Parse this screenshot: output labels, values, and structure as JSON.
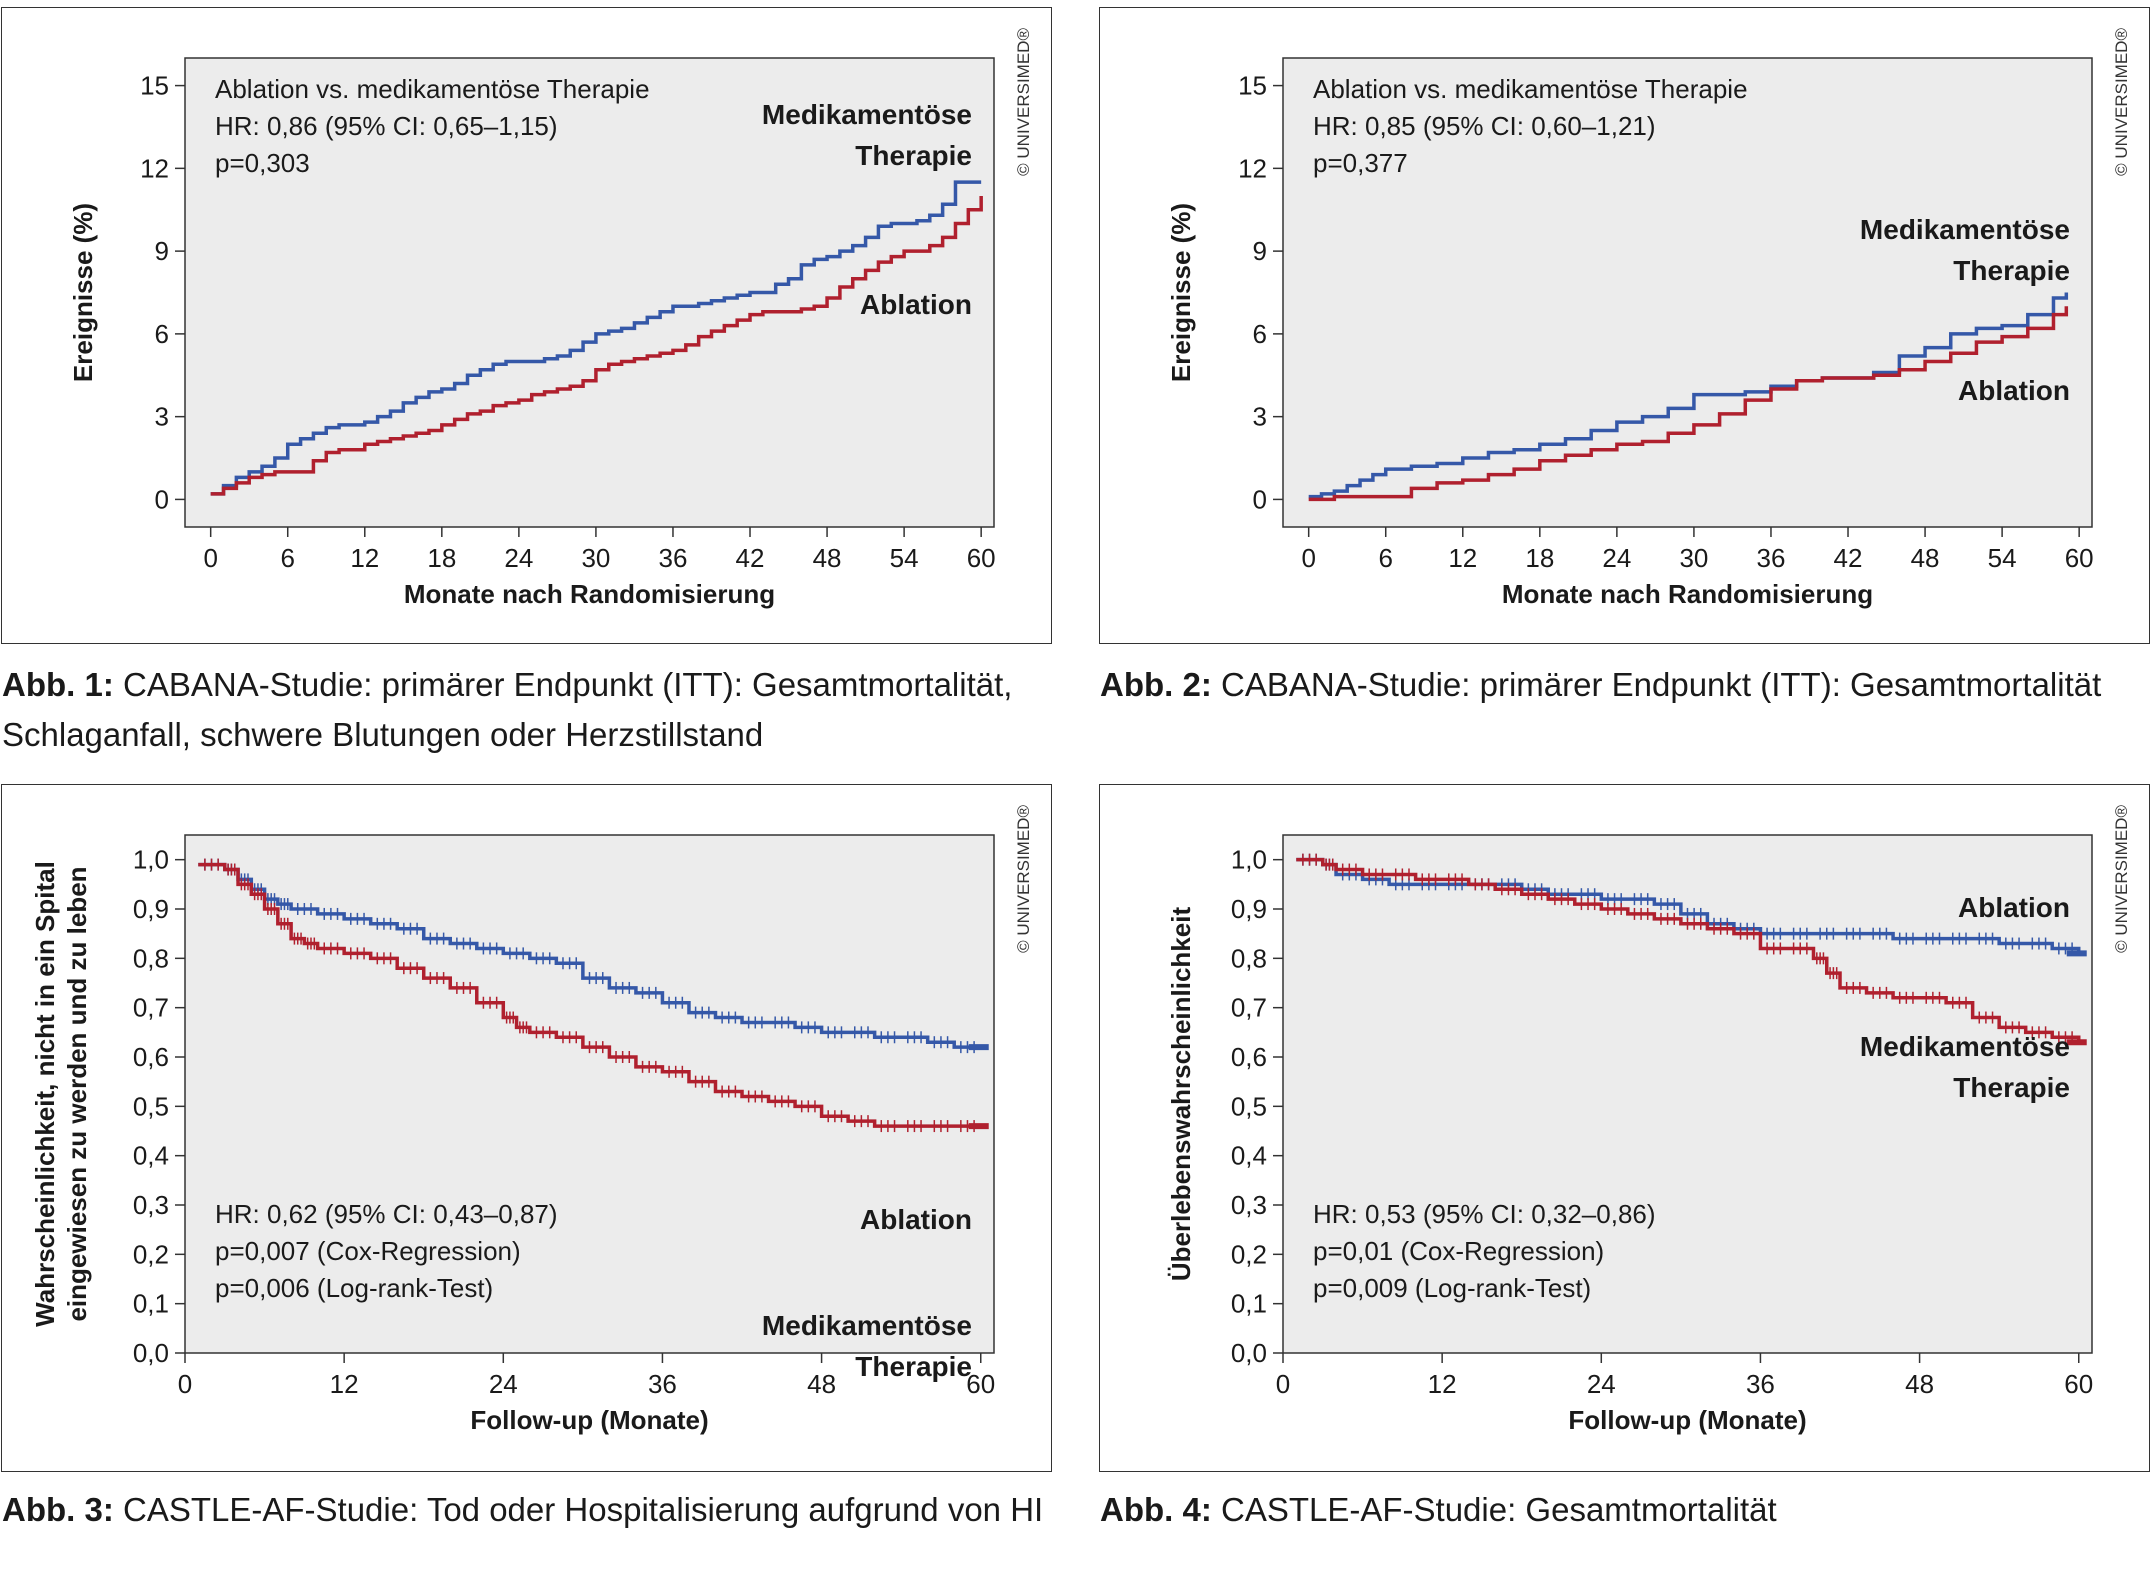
{
  "copyright": "© UNIVERSIMED®",
  "colors": {
    "blue": "#3558a8",
    "red": "#b0202e",
    "plot_bg": "#ececec"
  },
  "figures": [
    {
      "caption_label": "Abb. 1:",
      "caption_text": "CABANA-Studie: primärer Endpunkt (ITT): Gesamtmortalität, Schlaganfall, schwere Blutungen oder Herzstillstand",
      "stats": [
        "Ablation vs. medikamentöse Therapie",
        "HR: 0,86 (95% CI: 0,65–1,15)",
        "p=0,303"
      ],
      "labels": {
        "blue": [
          "Medikamentöse",
          "Therapie"
        ],
        "red": [
          "Ablation"
        ]
      }
    },
    {
      "caption_label": "Abb. 2:",
      "caption_text": "CABANA-Studie: primärer Endpunkt (ITT): Gesamtmortalität",
      "stats": [
        "Ablation vs. medikamentöse Therapie",
        "HR: 0,85 (95% CI: 0,60–1,21)",
        "p=0,377"
      ],
      "labels": {
        "blue": [
          "Medikamentöse",
          "Therapie"
        ],
        "red": [
          "Ablation"
        ]
      }
    },
    {
      "caption_label": "Abb. 3:",
      "caption_text": "CASTLE-AF-Studie: Tod oder Hospitalisierung aufgrund von HI",
      "stats": [
        "HR: 0,62 (95% CI: 0,43–0,87)",
        "p=0,007 (Cox-Regression)",
        "p=0,006 (Log-rank-Test)"
      ],
      "labels": {
        "blue": [
          "Ablation"
        ],
        "red": [
          "Medikamentöse",
          "Therapie"
        ]
      }
    },
    {
      "caption_label": "Abb. 4:",
      "caption_text": "CASTLE-AF-Studie: Gesamtmortalität",
      "stats": [
        "HR: 0,53 (95% CI: 0,32–0,86)",
        "p=0,01 (Cox-Regression)",
        "p=0,009 (Log-rank-Test)"
      ],
      "labels": {
        "blue": [
          "Ablation"
        ],
        "red": [
          "Medikamentöse",
          "Therapie"
        ]
      }
    }
  ],
  "chart_data": [
    {
      "type": "line",
      "step": true,
      "xlabel": "Monate nach Randomisierung",
      "ylabel": "Ereignisse (%)",
      "xlim": [
        -2,
        61
      ],
      "ylim": [
        -1,
        16
      ],
      "xticks": [
        0,
        6,
        12,
        18,
        24,
        30,
        36,
        42,
        48,
        54,
        60
      ],
      "yticks": [
        0,
        3,
        6,
        9,
        12,
        15
      ],
      "xticklabels": [
        "0",
        "6",
        "12",
        "18",
        "24",
        "30",
        "36",
        "42",
        "48",
        "54",
        "60"
      ],
      "yticklabels": [
        "0",
        "3",
        "6",
        "9",
        "12",
        "15"
      ],
      "series": [
        {
          "name": "Medikamentöse Therapie",
          "color": "#3558a8",
          "x": [
            0,
            1,
            2,
            3,
            4,
            5,
            6,
            7,
            8,
            9,
            10,
            12,
            13,
            14,
            15,
            16,
            17,
            18,
            19,
            20,
            21,
            22,
            23,
            24,
            25,
            26,
            27,
            28,
            29,
            30,
            31,
            32,
            33,
            34,
            35,
            36,
            37,
            38,
            39,
            40,
            41,
            42,
            43,
            44,
            45,
            46,
            47,
            48,
            49,
            50,
            51,
            52,
            53,
            54,
            55,
            56,
            57,
            58,
            59,
            60
          ],
          "y": [
            0.2,
            0.5,
            0.8,
            1.0,
            1.2,
            1.5,
            2.0,
            2.2,
            2.4,
            2.6,
            2.7,
            2.8,
            3.0,
            3.2,
            3.5,
            3.7,
            3.9,
            4.0,
            4.2,
            4.5,
            4.7,
            4.9,
            5.0,
            5.0,
            5.0,
            5.1,
            5.2,
            5.4,
            5.7,
            6.0,
            6.1,
            6.2,
            6.4,
            6.6,
            6.8,
            7.0,
            7.0,
            7.1,
            7.2,
            7.3,
            7.4,
            7.5,
            7.5,
            7.8,
            8.0,
            8.5,
            8.7,
            8.8,
            9.0,
            9.2,
            9.5,
            9.9,
            10.0,
            10.0,
            10.1,
            10.3,
            10.7,
            11.5,
            11.5,
            11.5
          ]
        },
        {
          "name": "Ablation",
          "color": "#b0202e",
          "x": [
            0,
            1,
            2,
            3,
            4,
            5,
            6,
            7,
            8,
            9,
            10,
            12,
            13,
            14,
            15,
            16,
            17,
            18,
            19,
            20,
            21,
            22,
            23,
            24,
            25,
            26,
            27,
            28,
            29,
            30,
            31,
            32,
            33,
            34,
            35,
            36,
            37,
            38,
            39,
            40,
            41,
            42,
            43,
            44,
            45,
            46,
            47,
            48,
            49,
            50,
            51,
            52,
            53,
            54,
            55,
            56,
            57,
            58,
            59,
            60
          ],
          "y": [
            0.2,
            0.4,
            0.6,
            0.8,
            0.9,
            1.0,
            1.0,
            1.0,
            1.4,
            1.7,
            1.8,
            2.0,
            2.1,
            2.2,
            2.3,
            2.4,
            2.5,
            2.7,
            2.9,
            3.1,
            3.2,
            3.4,
            3.5,
            3.6,
            3.8,
            3.9,
            4.0,
            4.1,
            4.3,
            4.7,
            4.9,
            5.0,
            5.1,
            5.2,
            5.3,
            5.4,
            5.6,
            5.9,
            6.1,
            6.3,
            6.5,
            6.7,
            6.8,
            6.8,
            6.8,
            6.9,
            7.0,
            7.3,
            7.7,
            8.0,
            8.3,
            8.6,
            8.8,
            9.0,
            9.0,
            9.2,
            9.5,
            10.0,
            10.5,
            11.0
          ]
        }
      ]
    },
    {
      "type": "line",
      "step": true,
      "xlabel": "Monate nach Randomisierung",
      "ylabel": "Ereignisse (%)",
      "xlim": [
        -2,
        61
      ],
      "ylim": [
        -1,
        16
      ],
      "xticks": [
        0,
        6,
        12,
        18,
        24,
        30,
        36,
        42,
        48,
        54,
        60
      ],
      "yticks": [
        0,
        3,
        6,
        9,
        12,
        15
      ],
      "xticklabels": [
        "0",
        "6",
        "12",
        "18",
        "24",
        "30",
        "36",
        "42",
        "48",
        "54",
        "60"
      ],
      "yticklabels": [
        "0",
        "3",
        "6",
        "9",
        "12",
        "15"
      ],
      "series": [
        {
          "name": "Medikamentöse Therapie",
          "color": "#3558a8",
          "x": [
            0,
            1,
            2,
            3,
            4,
            5,
            6,
            8,
            10,
            12,
            14,
            16,
            18,
            20,
            22,
            24,
            26,
            28,
            30,
            32,
            34,
            36,
            38,
            40,
            42,
            44,
            46,
            48,
            50,
            52,
            54,
            56,
            58,
            59
          ],
          "y": [
            0.1,
            0.2,
            0.3,
            0.5,
            0.7,
            0.9,
            1.1,
            1.2,
            1.3,
            1.5,
            1.7,
            1.8,
            2.0,
            2.2,
            2.5,
            2.8,
            3.0,
            3.3,
            3.8,
            3.8,
            3.9,
            4.1,
            4.3,
            4.4,
            4.4,
            4.6,
            5.2,
            5.5,
            6.0,
            6.2,
            6.3,
            6.7,
            7.3,
            7.5
          ]
        },
        {
          "name": "Ablation",
          "color": "#b0202e",
          "x": [
            0,
            2,
            4,
            6,
            8,
            10,
            12,
            14,
            16,
            18,
            20,
            22,
            24,
            26,
            28,
            30,
            32,
            34,
            36,
            38,
            40,
            42,
            44,
            46,
            48,
            50,
            52,
            54,
            56,
            58,
            59
          ],
          "y": [
            0,
            0.1,
            0.1,
            0.1,
            0.4,
            0.6,
            0.7,
            0.9,
            1.1,
            1.4,
            1.6,
            1.8,
            2.0,
            2.1,
            2.4,
            2.7,
            3.1,
            3.6,
            4.0,
            4.3,
            4.4,
            4.4,
            4.5,
            4.7,
            5.0,
            5.3,
            5.7,
            5.9,
            6.2,
            6.7,
            7.0
          ]
        }
      ]
    },
    {
      "type": "line",
      "step": true,
      "xlabel": "Follow-up (Monate)",
      "ylabel": "Wahrscheinlichkeit, nicht in ein Spital eingewiesen zu werden und zu leben",
      "xlim": [
        0,
        61
      ],
      "ylim": [
        0,
        1.05
      ],
      "xticks": [
        0,
        12,
        24,
        36,
        48,
        60
      ],
      "yticks": [
        0,
        0.1,
        0.2,
        0.3,
        0.4,
        0.5,
        0.6,
        0.7,
        0.8,
        0.9,
        1.0
      ],
      "xticklabels": [
        "0",
        "12",
        "24",
        "36",
        "48",
        "60"
      ],
      "yticklabels": [
        "0,0",
        "0,1",
        "0,2",
        "0,3",
        "0,4",
        "0,5",
        "0,6",
        "0,7",
        "0,8",
        "0,9",
        "1,0"
      ],
      "series": [
        {
          "name": "Ablation",
          "color": "#3558a8",
          "x": [
            1,
            3,
            4,
            5,
            6,
            7,
            8,
            10,
            12,
            14,
            16,
            18,
            20,
            22,
            24,
            26,
            28,
            30,
            32,
            34,
            36,
            38,
            40,
            42,
            44,
            46,
            48,
            50,
            52,
            54,
            56,
            58,
            60
          ],
          "y": [
            0.99,
            0.98,
            0.96,
            0.94,
            0.92,
            0.91,
            0.9,
            0.89,
            0.88,
            0.87,
            0.86,
            0.84,
            0.83,
            0.82,
            0.81,
            0.8,
            0.79,
            0.76,
            0.74,
            0.73,
            0.71,
            0.69,
            0.68,
            0.67,
            0.67,
            0.66,
            0.65,
            0.65,
            0.64,
            0.64,
            0.63,
            0.62,
            0.62
          ]
        },
        {
          "name": "Medikamentöse Therapie",
          "color": "#b0202e",
          "x": [
            1,
            3,
            4,
            5,
            6,
            7,
            8,
            9,
            10,
            12,
            14,
            16,
            18,
            20,
            22,
            24,
            25,
            26,
            28,
            30,
            32,
            34,
            36,
            38,
            40,
            42,
            44,
            46,
            48,
            50,
            52,
            54,
            56,
            58,
            60
          ],
          "y": [
            0.99,
            0.98,
            0.95,
            0.93,
            0.9,
            0.87,
            0.84,
            0.83,
            0.82,
            0.81,
            0.8,
            0.78,
            0.76,
            0.74,
            0.71,
            0.68,
            0.66,
            0.65,
            0.64,
            0.62,
            0.6,
            0.58,
            0.57,
            0.55,
            0.53,
            0.52,
            0.51,
            0.5,
            0.48,
            0.47,
            0.46,
            0.46,
            0.46,
            0.46,
            0.46
          ]
        }
      ]
    },
    {
      "type": "line",
      "step": true,
      "xlabel": "Follow-up (Monate)",
      "ylabel": "Überlebenswahrscheinlichkeit",
      "xlim": [
        0,
        61
      ],
      "ylim": [
        0,
        1.05
      ],
      "xticks": [
        0,
        12,
        24,
        36,
        48,
        60
      ],
      "yticks": [
        0,
        0.1,
        0.2,
        0.3,
        0.4,
        0.5,
        0.6,
        0.7,
        0.8,
        0.9,
        1.0
      ],
      "xticklabels": [
        "0",
        "12",
        "24",
        "36",
        "48",
        "60"
      ],
      "yticklabels": [
        "0,0",
        "0,1",
        "0,2",
        "0,3",
        "0,4",
        "0,5",
        "0,6",
        "0,7",
        "0,8",
        "0,9",
        "1,0"
      ],
      "series": [
        {
          "name": "Ablation",
          "color": "#3558a8",
          "x": [
            1,
            3,
            4,
            6,
            8,
            10,
            12,
            14,
            16,
            18,
            20,
            22,
            24,
            26,
            28,
            30,
            32,
            34,
            36,
            38,
            40,
            42,
            44,
            46,
            48,
            50,
            52,
            54,
            56,
            58,
            60
          ],
          "y": [
            1.0,
            0.99,
            0.97,
            0.96,
            0.95,
            0.95,
            0.95,
            0.95,
            0.95,
            0.94,
            0.93,
            0.93,
            0.92,
            0.92,
            0.91,
            0.89,
            0.87,
            0.86,
            0.85,
            0.85,
            0.85,
            0.85,
            0.85,
            0.84,
            0.84,
            0.84,
            0.84,
            0.83,
            0.83,
            0.82,
            0.81
          ]
        },
        {
          "name": "Medikamentöse Therapie",
          "color": "#b0202e",
          "x": [
            1,
            3,
            4,
            6,
            8,
            10,
            12,
            14,
            16,
            18,
            20,
            22,
            24,
            26,
            28,
            30,
            32,
            34,
            36,
            38,
            40,
            41,
            42,
            44,
            46,
            48,
            50,
            52,
            54,
            56,
            58,
            60
          ],
          "y": [
            1.0,
            0.99,
            0.98,
            0.97,
            0.97,
            0.96,
            0.96,
            0.95,
            0.94,
            0.93,
            0.92,
            0.91,
            0.9,
            0.89,
            0.88,
            0.87,
            0.86,
            0.85,
            0.82,
            0.82,
            0.8,
            0.77,
            0.74,
            0.73,
            0.72,
            0.72,
            0.71,
            0.68,
            0.66,
            0.65,
            0.64,
            0.63
          ]
        }
      ]
    }
  ]
}
